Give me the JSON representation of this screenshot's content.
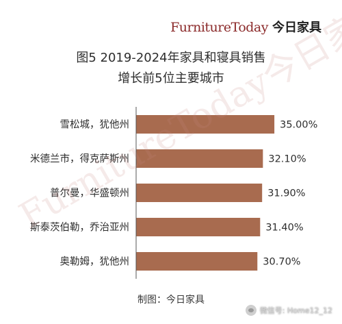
{
  "brand": {
    "logo_text": "FurnitureToday",
    "cn_name": "今日家具"
  },
  "colors": {
    "bar": "#A86B4F",
    "brand": "#8B2A2A",
    "axis": "#555555"
  },
  "chart_data": {
    "type": "bar",
    "orientation": "horizontal",
    "title_line1": "图5  2019-2024年家具和寝具销售",
    "title_line2": "增长前5位主要城市",
    "categories": [
      "雪松城，犹他州",
      "米德兰市，得克萨斯州",
      "普尔曼，华盛顿州",
      "斯泰茨伯勒，乔治亚州",
      "奥勒姆，犹他州"
    ],
    "values": [
      35.0,
      32.1,
      31.9,
      31.4,
      30.7
    ],
    "value_labels": [
      "35.00%",
      "32.10%",
      "31.90%",
      "31.40%",
      "30.70%"
    ],
    "xlim": [
      0,
      35.5
    ],
    "legend": "none",
    "grid": false
  },
  "watermark": {
    "text": "FurnitureToday今日家具"
  },
  "footer": {
    "credit": "制图：今日家具"
  },
  "wechat": {
    "label": "微信号: Home12_12",
    "icon": "wechat-icon"
  }
}
